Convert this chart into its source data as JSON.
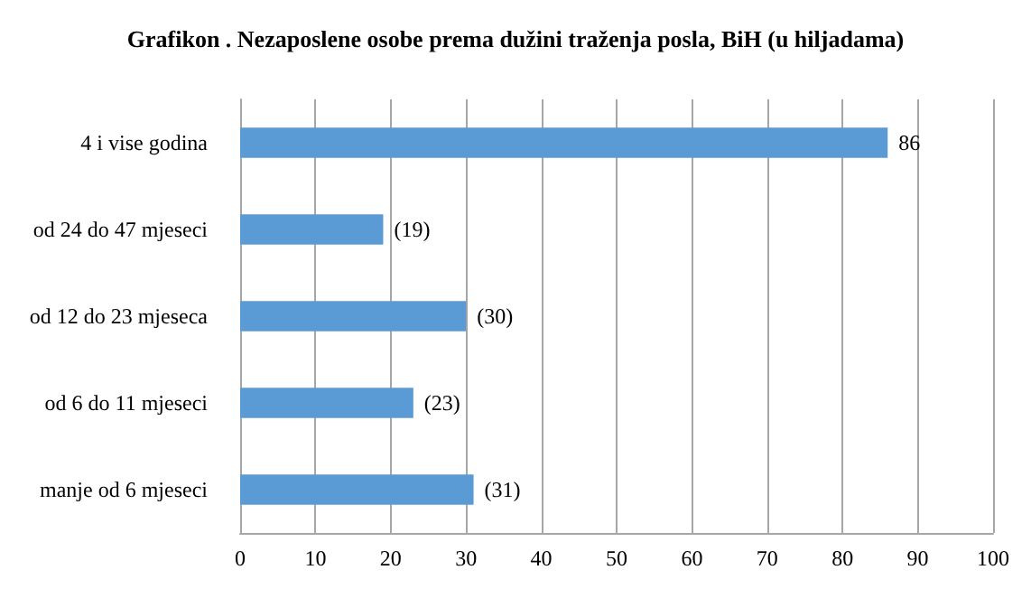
{
  "chart_data": {
    "type": "bar",
    "orientation": "horizontal",
    "title": "Grafikon . Nezaposlene osobe prema dužini traženja posla, BiH (u hiljadama)",
    "categories": [
      "4 i vise godina",
      "od 24 do 47 mjeseci",
      "od 12 do 23 mjeseca",
      "od 6 do 11 mjeseci",
      "manje od 6 mjeseci"
    ],
    "values": [
      86,
      19,
      30,
      23,
      31
    ],
    "value_labels": [
      "86",
      "(19)",
      "(30)",
      "(23)",
      "(31)"
    ],
    "color": "#5b9bd5",
    "xlim": [
      0,
      100
    ],
    "xticks": [
      0,
      10,
      20,
      30,
      40,
      50,
      60,
      70,
      80,
      90,
      100
    ],
    "grid": "x"
  }
}
